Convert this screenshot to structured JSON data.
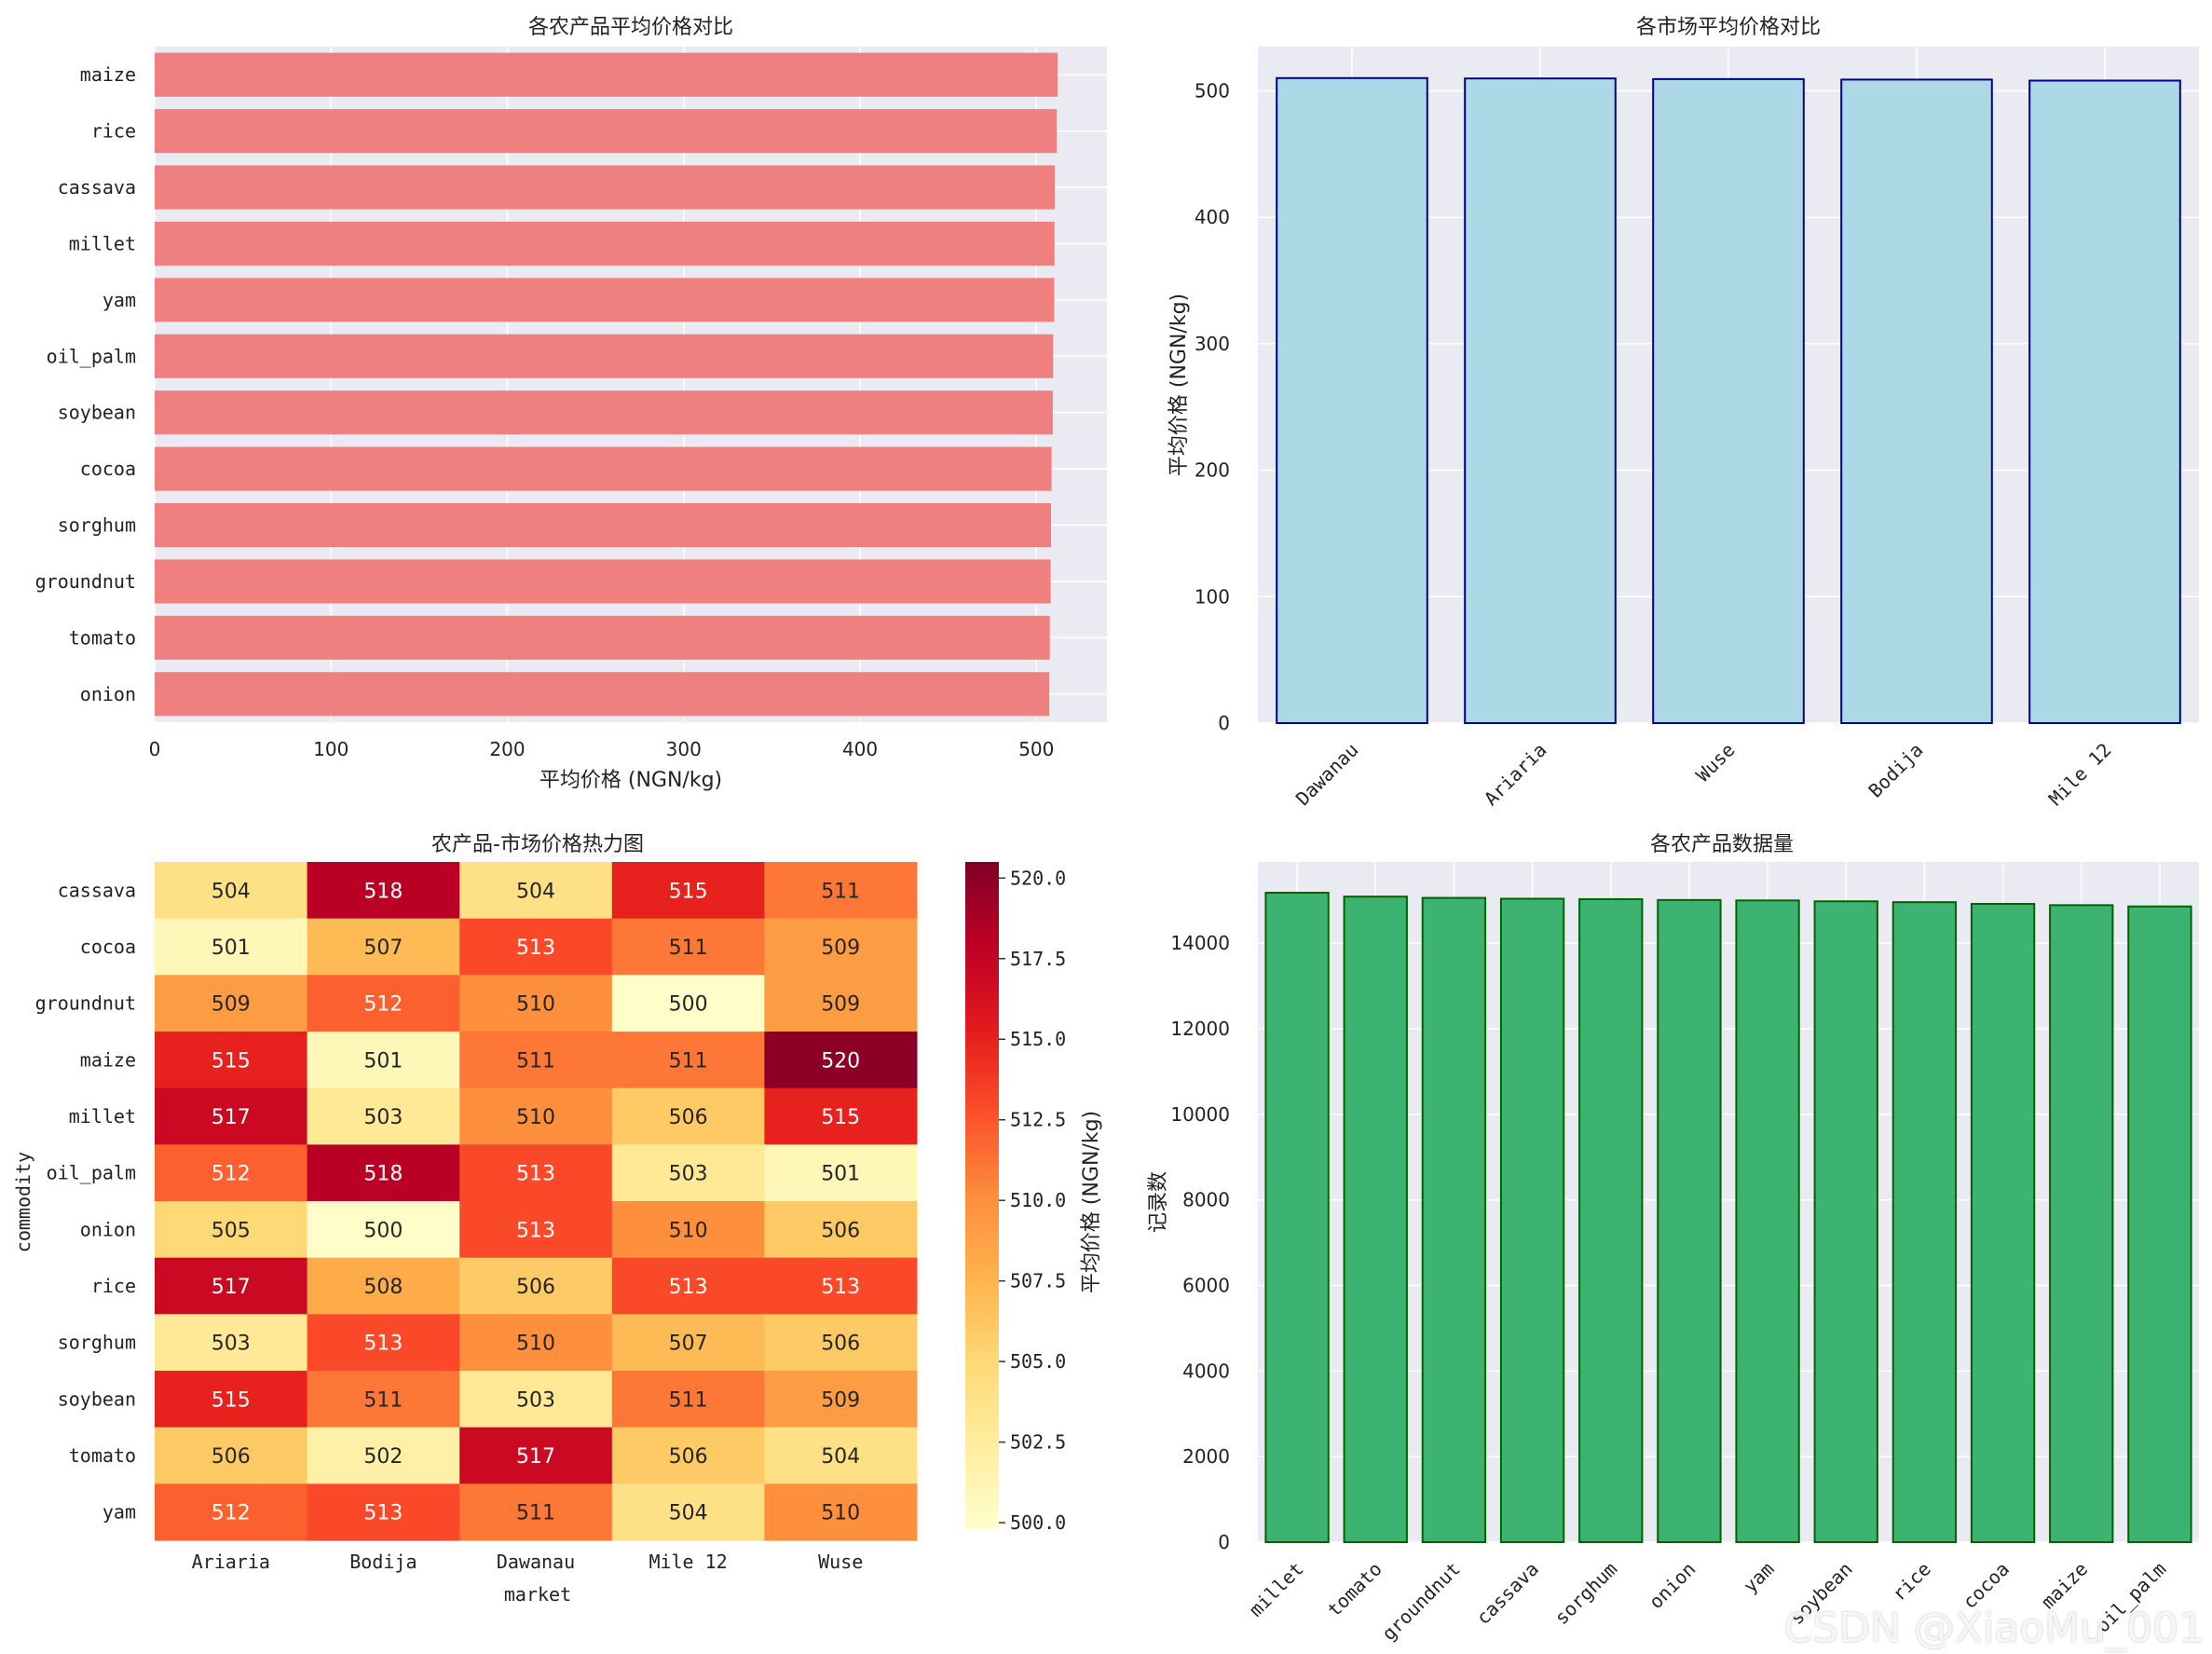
{
  "chart_data": [
    {
      "type": "bar",
      "orientation": "horizontal",
      "title": "各农产品平均价格对比",
      "xlabel": "平均价格 (NGN/kg)",
      "ylabel": "",
      "xlim": [
        0,
        540
      ],
      "xticks": [
        0,
        100,
        200,
        300,
        400,
        500
      ],
      "categories": [
        "maize",
        "rice",
        "cassava",
        "millet",
        "yam",
        "oil_palm",
        "soybean",
        "cocoa",
        "sorghum",
        "groundnut",
        "tomato",
        "onion"
      ],
      "values": [
        512,
        511.6,
        510.5,
        510.3,
        510.1,
        509.5,
        509.3,
        508.6,
        508.3,
        508.1,
        507.6,
        507.3
      ],
      "color": "#f08080"
    },
    {
      "type": "bar",
      "title": "各市场平均价格对比",
      "xlabel": "",
      "ylabel": "平均价格 (NGN/kg)",
      "ylim": [
        0,
        535
      ],
      "yticks": [
        0,
        100,
        200,
        300,
        400,
        500
      ],
      "categories": [
        "Dawanau",
        "Ariaria",
        "Wuse",
        "Bodija",
        "Mile 12"
      ],
      "values": [
        510.1,
        509.8,
        509.3,
        508.9,
        508.1
      ],
      "color": "#add8e6",
      "edgecolor": "#00008b"
    },
    {
      "type": "heatmap",
      "title": "农产品-市场价格热力图",
      "xlabel": "market",
      "ylabel": "commodity",
      "columns": [
        "Ariaria",
        "Bodija",
        "Dawanau",
        "Mile 12",
        "Wuse"
      ],
      "rows": [
        "cassava",
        "cocoa",
        "groundnut",
        "maize",
        "millet",
        "oil_palm",
        "onion",
        "rice",
        "sorghum",
        "soybean",
        "tomato",
        "yam"
      ],
      "values": [
        [
          504,
          518,
          504,
          515,
          511
        ],
        [
          501,
          507,
          513,
          511,
          509
        ],
        [
          509,
          512,
          510,
          500,
          509
        ],
        [
          515,
          501,
          511,
          511,
          520
        ],
        [
          517,
          503,
          510,
          506,
          515
        ],
        [
          512,
          518,
          513,
          503,
          501
        ],
        [
          505,
          500,
          513,
          510,
          506
        ],
        [
          517,
          508,
          506,
          513,
          513
        ],
        [
          503,
          513,
          510,
          507,
          506
        ],
        [
          515,
          511,
          503,
          511,
          509
        ],
        [
          506,
          502,
          517,
          506,
          504
        ],
        [
          512,
          513,
          511,
          504,
          510
        ]
      ],
      "vmin": 499.8,
      "vmax": 520.5,
      "colorbar_label": "平均价格 (NGN/kg)",
      "colorbar_ticks": [
        "500.0",
        "502.5",
        "505.0",
        "507.5",
        "510.0",
        "512.5",
        "515.0",
        "517.5",
        "520.0"
      ],
      "colormap": "YlOrRd"
    },
    {
      "type": "bar",
      "title": "各农产品数据量",
      "xlabel": "",
      "ylabel": "记录数",
      "ylim": [
        0,
        15900
      ],
      "yticks": [
        0,
        2000,
        4000,
        6000,
        8000,
        10000,
        12000,
        14000
      ],
      "categories": [
        "millet",
        "tomato",
        "groundnut",
        "cassava",
        "sorghum",
        "onion",
        "yam",
        "soybean",
        "rice",
        "cocoa",
        "maize",
        "oil_palm"
      ],
      "values": [
        15180,
        15090,
        15060,
        15040,
        15030,
        15010,
        15000,
        14980,
        14960,
        14920,
        14890,
        14860
      ],
      "color": "#3cb371",
      "edgecolor": "#006400"
    }
  ],
  "watermark": "CSDN @XiaoMu_001"
}
